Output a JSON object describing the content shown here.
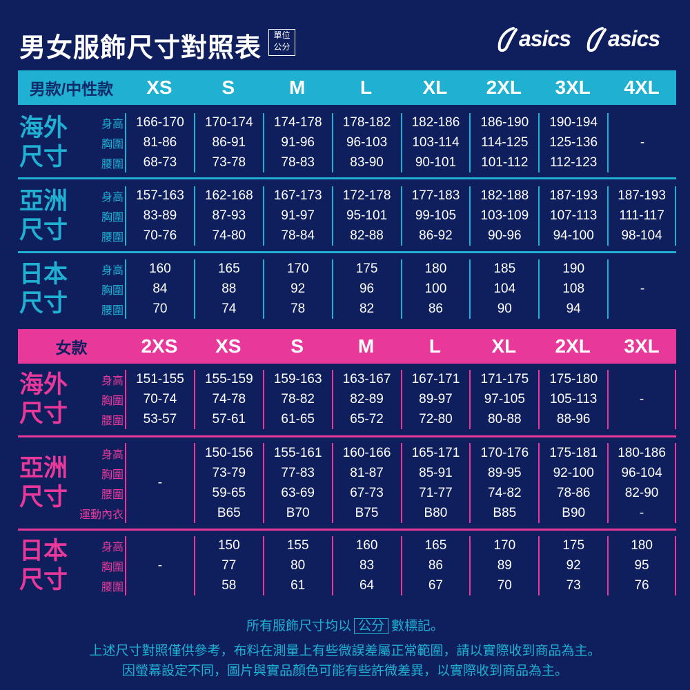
{
  "title": "男女服飾尺寸對照表",
  "unit_badge": [
    "單位",
    "公分"
  ],
  "logos": [
    "asics",
    "asics"
  ],
  "colors": {
    "background": "#0f1f5e",
    "men_accent": "#1fb0d2",
    "women_accent": "#e8399a",
    "text": "#ffffff"
  },
  "men": {
    "header": "男款/中性款",
    "sizes": [
      "XS",
      "S",
      "M",
      "L",
      "XL",
      "2XL",
      "3XL",
      "4XL"
    ],
    "sections": [
      {
        "region": "海外尺寸",
        "rows": [
          "身高",
          "胸圍",
          "腰圍"
        ],
        "columns": [
          [
            "166-170",
            "81-86",
            "68-73"
          ],
          [
            "170-174",
            "86-91",
            "73-78"
          ],
          [
            "174-178",
            "91-96",
            "78-83"
          ],
          [
            "178-182",
            "96-103",
            "83-90"
          ],
          [
            "182-186",
            "103-114",
            "90-101"
          ],
          [
            "186-190",
            "114-125",
            "101-112"
          ],
          [
            "190-194",
            "125-136",
            "112-123"
          ],
          [
            "-"
          ]
        ]
      },
      {
        "region": "亞洲尺寸",
        "rows": [
          "身高",
          "胸圍",
          "腰圍"
        ],
        "columns": [
          [
            "157-163",
            "83-89",
            "70-76"
          ],
          [
            "162-168",
            "87-93",
            "74-80"
          ],
          [
            "167-173",
            "91-97",
            "78-84"
          ],
          [
            "172-178",
            "95-101",
            "82-88"
          ],
          [
            "177-183",
            "99-105",
            "86-92"
          ],
          [
            "182-188",
            "103-109",
            "90-96"
          ],
          [
            "187-193",
            "107-113",
            "94-100"
          ],
          [
            "187-193",
            "111-117",
            "98-104"
          ]
        ]
      },
      {
        "region": "日本尺寸",
        "rows": [
          "身高",
          "胸圍",
          "腰圍"
        ],
        "columns": [
          [
            "160",
            "84",
            "70"
          ],
          [
            "165",
            "88",
            "74"
          ],
          [
            "170",
            "92",
            "78"
          ],
          [
            "175",
            "96",
            "82"
          ],
          [
            "180",
            "100",
            "86"
          ],
          [
            "185",
            "104",
            "90"
          ],
          [
            "190",
            "108",
            "94"
          ],
          [
            "-"
          ]
        ]
      }
    ]
  },
  "women": {
    "header": "女款",
    "sizes": [
      "2XS",
      "XS",
      "S",
      "M",
      "L",
      "XL",
      "2XL",
      "3XL"
    ],
    "sections": [
      {
        "region": "海外尺寸",
        "rows": [
          "身高",
          "胸圍",
          "腰圍"
        ],
        "columns": [
          [
            "151-155",
            "70-74",
            "53-57"
          ],
          [
            "155-159",
            "74-78",
            "57-61"
          ],
          [
            "159-163",
            "78-82",
            "61-65"
          ],
          [
            "163-167",
            "82-89",
            "65-72"
          ],
          [
            "167-171",
            "89-97",
            "72-80"
          ],
          [
            "171-175",
            "97-105",
            "80-88"
          ],
          [
            "175-180",
            "105-113",
            "88-96"
          ],
          [
            "-"
          ]
        ]
      },
      {
        "region": "亞洲尺寸",
        "rows": [
          "身高",
          "胸圍",
          "腰圍",
          "運動內衣"
        ],
        "columns": [
          [
            "-"
          ],
          [
            "150-156",
            "73-79",
            "59-65",
            "B65"
          ],
          [
            "155-161",
            "77-83",
            "63-69",
            "B70"
          ],
          [
            "160-166",
            "81-87",
            "67-73",
            "B75"
          ],
          [
            "165-171",
            "85-91",
            "71-77",
            "B80"
          ],
          [
            "170-176",
            "89-95",
            "74-82",
            "B85"
          ],
          [
            "175-181",
            "92-100",
            "78-86",
            "B90"
          ],
          [
            "180-186",
            "96-104",
            "82-90",
            "-"
          ]
        ]
      },
      {
        "region": "日本尺寸",
        "rows": [
          "身高",
          "胸圍",
          "腰圍"
        ],
        "columns": [
          [
            "-"
          ],
          [
            "150",
            "77",
            "58"
          ],
          [
            "155",
            "80",
            "61"
          ],
          [
            "160",
            "83",
            "64"
          ],
          [
            "165",
            "86",
            "67"
          ],
          [
            "170",
            "89",
            "70"
          ],
          [
            "175",
            "92",
            "73"
          ],
          [
            "180",
            "95",
            "76"
          ]
        ]
      }
    ]
  },
  "footer": {
    "line1_before": "所有服飾尺寸均以",
    "line1_boxed": "公分",
    "line1_after": "數標記。",
    "line2": "上述尺寸對照僅供參考，布料在測量上有些微誤差屬正常範圍，請以實際收到商品為主。",
    "line3": "因螢幕設定不同，圖片與實品顏色可能有些許微差異，以實際收到商品為主。"
  }
}
